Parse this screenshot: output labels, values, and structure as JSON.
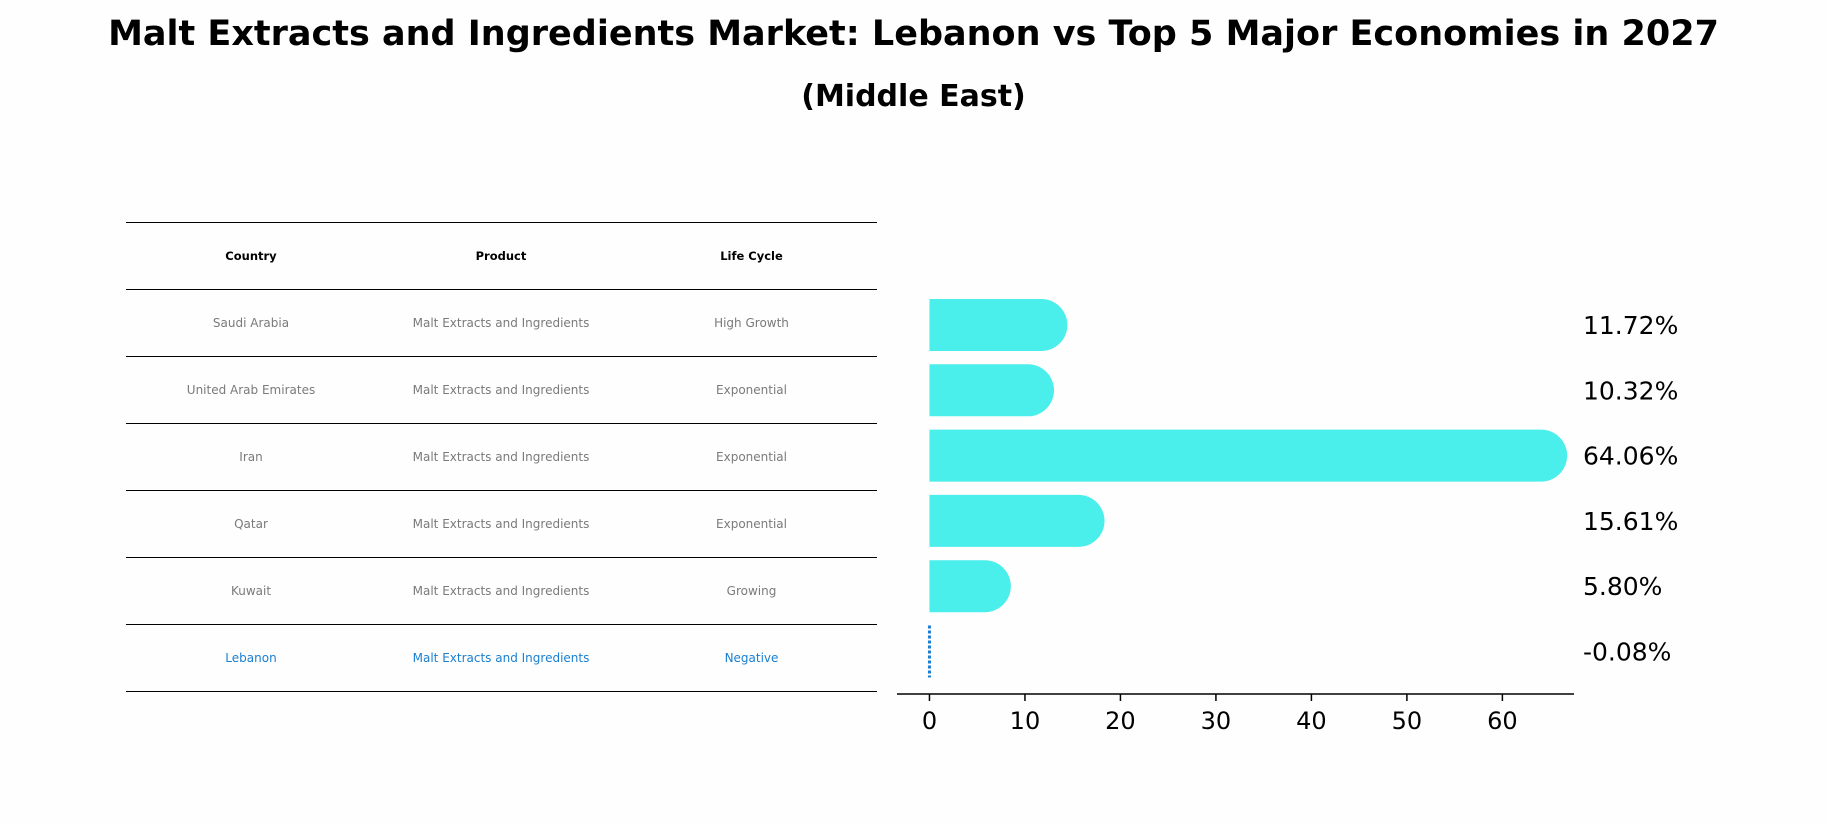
{
  "title": "Malt Extracts and Ingredients Market: Lebanon vs Top 5 Major Economies in 2027",
  "subtitle": "(Middle East)",
  "table": {
    "headers": [
      "Country",
      "Product",
      "Life Cycle"
    ],
    "rows": [
      [
        "Saudi Arabia",
        "Malt Extracts and Ingredients",
        "High Growth"
      ],
      [
        "United Arab Emirates",
        "Malt Extracts and Ingredients",
        "Exponential"
      ],
      [
        "Iran",
        "Malt Extracts and Ingredients",
        "Exponential"
      ],
      [
        "Qatar",
        "Malt Extracts and Ingredients",
        "Exponential"
      ],
      [
        "Kuwait",
        "Malt Extracts and Ingredients",
        "Growing"
      ],
      [
        "Lebanon",
        "Malt Extracts and Ingredients",
        "Negative"
      ]
    ]
  },
  "chart_data": {
    "type": "bar",
    "orientation": "horizontal",
    "categories": [
      "Saudi Arabia",
      "United Arab Emirates",
      "Iran",
      "Qatar",
      "Kuwait",
      "Lebanon"
    ],
    "values": [
      11.72,
      10.32,
      64.06,
      15.61,
      5.8,
      -0.08
    ],
    "value_labels": [
      "11.72%",
      "10.32%",
      "64.06%",
      "15.61%",
      "5.80%",
      "-0.08%"
    ],
    "xlim": [
      -3.4,
      67.5
    ],
    "xticks": [
      0,
      10,
      20,
      30,
      40,
      50,
      60
    ],
    "bar_color": "#4aeeeb",
    "highlight_color": "#1a7fd1",
    "highlight_category": "Lebanon"
  }
}
